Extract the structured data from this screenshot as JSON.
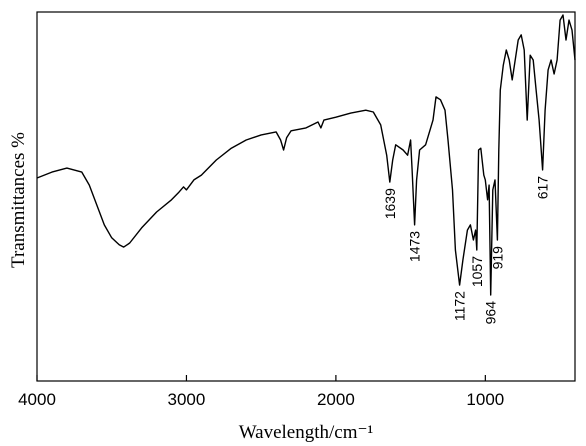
{
  "chart_data": {
    "type": "line",
    "x_label": "Wavelength/cm⁻¹",
    "y_label": "Transmittances %",
    "xlim": [
      4000,
      400
    ],
    "ylim": [
      0,
      100
    ],
    "xticks": [
      4000,
      3000,
      2000,
      1000
    ],
    "color": "#000000",
    "x": [
      4000,
      3900,
      3800,
      3700,
      3650,
      3600,
      3550,
      3500,
      3450,
      3420,
      3380,
      3300,
      3200,
      3100,
      3050,
      3020,
      3000,
      2950,
      2900,
      2800,
      2700,
      2600,
      2500,
      2400,
      2370,
      2350,
      2330,
      2300,
      2200,
      2120,
      2100,
      2080,
      2000,
      1900,
      1800,
      1750,
      1700,
      1660,
      1639,
      1620,
      1600,
      1550,
      1520,
      1500,
      1490,
      1473,
      1460,
      1440,
      1400,
      1350,
      1330,
      1300,
      1270,
      1250,
      1220,
      1200,
      1172,
      1150,
      1120,
      1100,
      1080,
      1065,
      1057,
      1045,
      1030,
      1010,
      1000,
      985,
      975,
      964,
      950,
      935,
      919,
      910,
      900,
      880,
      860,
      840,
      820,
      800,
      780,
      760,
      740,
      720,
      700,
      680,
      660,
      640,
      617,
      600,
      580,
      560,
      540,
      520,
      500,
      480,
      460,
      440,
      420,
      400
    ],
    "values": [
      55.0,
      56.6,
      57.7,
      56.6,
      53.1,
      47.7,
      42.3,
      38.8,
      36.9,
      36.3,
      37.4,
      41.5,
      45.8,
      49.1,
      51.2,
      52.6,
      51.8,
      54.5,
      55.8,
      59.9,
      63.1,
      65.3,
      66.7,
      67.5,
      65.3,
      62.6,
      65.9,
      67.8,
      68.6,
      70.2,
      68.6,
      70.7,
      71.5,
      72.6,
      73.4,
      72.9,
      69.4,
      61.2,
      53.9,
      59.9,
      64.0,
      62.6,
      61.2,
      65.3,
      57.2,
      42.3,
      54.5,
      62.6,
      64.0,
      70.7,
      77.0,
      76.2,
      73.4,
      65.3,
      51.8,
      35.5,
      26.0,
      32.8,
      40.9,
      42.3,
      38.2,
      40.9,
      35.5,
      62.6,
      63.1,
      55.8,
      54.5,
      49.1,
      53.1,
      23.3,
      51.8,
      54.5,
      38.2,
      62.6,
      78.9,
      85.6,
      89.7,
      87.0,
      81.6,
      87.0,
      92.4,
      93.8,
      89.7,
      70.7,
      88.3,
      87.0,
      78.9,
      70.7,
      57.2,
      73.4,
      84.3,
      87.0,
      83.2,
      87.0,
      97.8,
      99.2,
      92.4,
      97.8,
      95.1,
      87.0
    ],
    "peak_labels": [
      1639,
      1473,
      1172,
      1057,
      964,
      919,
      617
    ]
  }
}
